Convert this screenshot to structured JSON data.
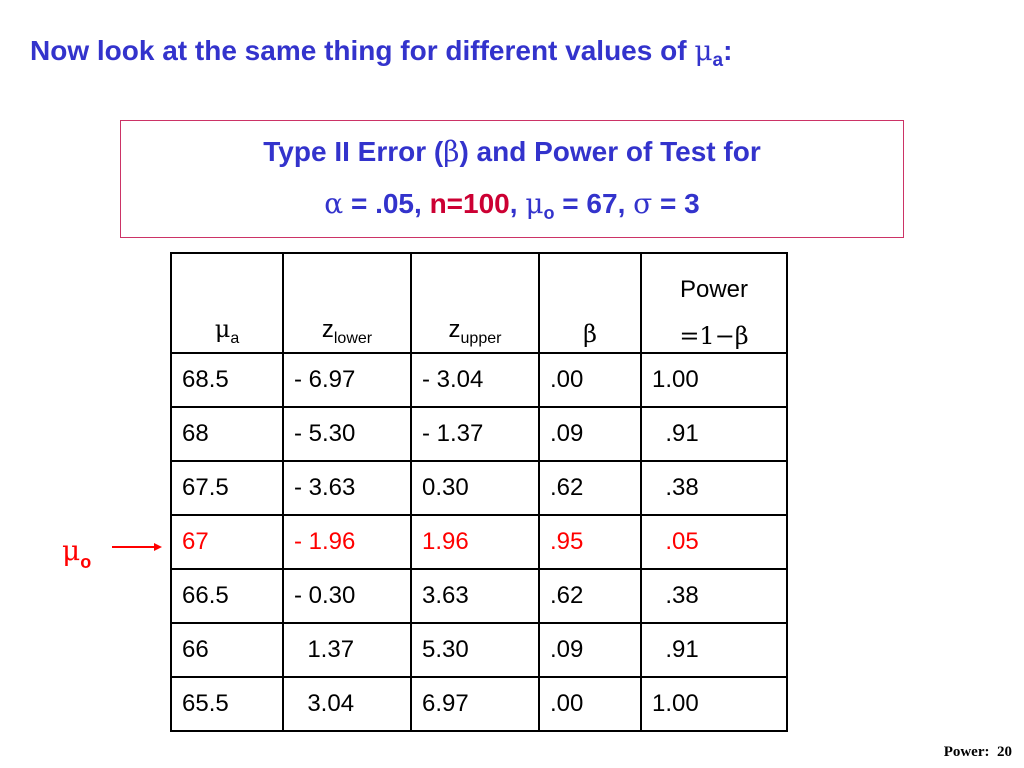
{
  "title": {
    "text": "Now look at the same thing for different values of ",
    "symbol": "μ",
    "subscript": "a",
    "suffix": ":"
  },
  "box": {
    "line1_pre": "Type II Error (",
    "line1_symbol": "β",
    "line1_post": ") and Power of Test for",
    "alpha_symbol": "α",
    "alpha_text": " = .05, ",
    "n_text": "n=100",
    "comma": ", ",
    "mu_symbol": "μ",
    "mu_sub": "o",
    "mu_text": " = 67, ",
    "sigma_symbol": "σ",
    "sigma_text": " = 3"
  },
  "table": {
    "header": {
      "mu_symbol": "μ",
      "mu_sub": "a",
      "zlower": "z",
      "zlower_sub": "lower",
      "zupper": "z",
      "zupper_sub": "upper",
      "beta": "β",
      "power_line1": "Power",
      "power_line2": "=1−β"
    },
    "rows": [
      [
        "68.5",
        "- 6.97",
        "- 3.04",
        ".00",
        "1.00"
      ],
      [
        "68",
        "- 5.30",
        "- 1.37",
        ".09",
        "  .91"
      ],
      [
        "67.5",
        "- 3.63",
        "0.30",
        ".62",
        "  .38"
      ],
      [
        "67",
        "- 1.96",
        "1.96",
        ".95",
        "  .05"
      ],
      [
        "66.5",
        "- 0.30",
        "3.63",
        ".62",
        "  .38"
      ],
      [
        "66",
        "  1.37",
        "5.30",
        ".09",
        "  .91"
      ],
      [
        "65.5",
        "  3.04",
        "6.97",
        ".00",
        "1.00"
      ]
    ],
    "highlight_row": 3,
    "highlight_color": "#ff0000"
  },
  "pointer": {
    "symbol": "μ",
    "subscript": "o"
  },
  "footer": "Power:  20",
  "colors": {
    "title": "#3333cc",
    "box_border": "#cc3366",
    "accent_red": "#cc0033"
  }
}
